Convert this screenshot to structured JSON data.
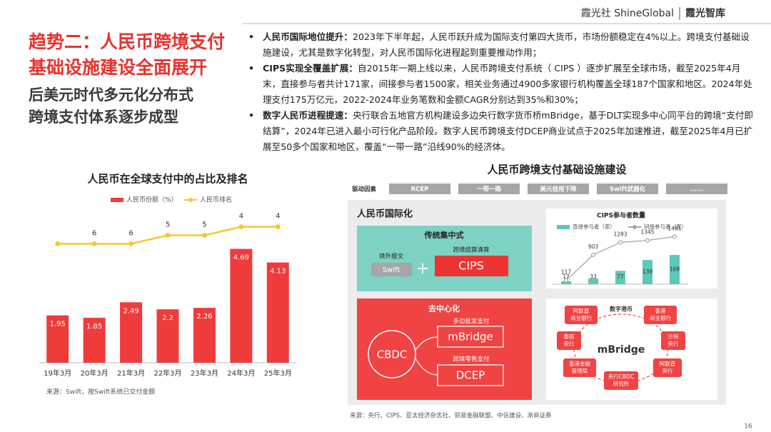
{
  "header": {
    "brand": "霞光社 ShineGlobal",
    "sub": "霞光智库"
  },
  "title": [
    "趋势二：人民币跨境支付",
    "基础设施建设全面展开"
  ],
  "subtitle": [
    "后美元时代多元化分布式",
    "跨境支付体系逐步成型"
  ],
  "bullets": [
    {
      "label": "人民币国际地位提升：",
      "text": "2023年下半年起，人民币跃升成为国际支付第四大货币，市场份额稳定在4%以上。跨境支付基础设施建设，尤其是数字化转型，对人民币国际化进程起到重要推动作用；"
    },
    {
      "label": "CIPS实现全覆盖扩展：",
      "text": "自2015年一期上线以来，人民币跨境支付系统（ CIPS ）逐步扩展至全球市场，截至2025年4月末，直接参与者共计171家，间接参与者1500家，相关业务通过4900多家银行机构覆盖全球187个国家和地区。2024年处理支付175万亿元，2022-2024年业务笔数和金额CAGR分别达到35%和30%；"
    },
    {
      "label": "数字人民币进程提速：",
      "text": "央行联合五地官方机构建设多边央行数字货币桥mBridge，基于DLT实现多中心同平台的跨境“支付即结算”，2024年已进入最小可行化产品阶段。数字人民币跨境支付DCEP商业试点于2025年加速推进，截至2025年4月已扩展至50多个国家和地区，覆盖“一带一路”沿线90%的经济体。"
    }
  ],
  "chart_data": [
    {
      "type": "bar",
      "title": "人民币在全球支付中的占比及排名",
      "categories": [
        "19年3月",
        "20年3月",
        "21年3月",
        "22年3月",
        "23年3月",
        "24年3月",
        "25年3月"
      ],
      "series": [
        {
          "name": "人民币份额（%）",
          "color": "#f03b3b",
          "values": [
            1.95,
            1.85,
            2.49,
            2.2,
            2.26,
            4.69,
            4.13
          ]
        },
        {
          "name": "人民币排名",
          "color": "#f5c733",
          "type": "line",
          "axis": "y2",
          "values": [
            6,
            6,
            6,
            5,
            5,
            4,
            4
          ],
          "value_labels": [
            null,
            "6",
            "6",
            "5",
            "5",
            "4",
            "4"
          ]
        }
      ],
      "ylim": [
        0,
        7
      ],
      "y2lim": [
        20,
        0
      ],
      "source": "来源：Swift，按Swift系统已交付金额"
    },
    {
      "type": "bar",
      "title": "CIPS参与者数量",
      "categories": [
        null,
        null,
        null,
        null,
        null
      ],
      "series": [
        {
          "name": "直接参与者（家）",
          "color": "#5cc8b8",
          "values": [
            17,
            33,
            77,
            139,
            168
          ]
        },
        {
          "name": "间接参与者（家）",
          "color": "#a6a6a6",
          "type": "line",
          "axis": "y2",
          "values": [
            117,
            903,
            1283,
            1345,
            1461
          ]
        }
      ],
      "ylim": [
        0,
        300
      ],
      "y2lim": [
        0,
        1600
      ]
    }
  ],
  "diagram": {
    "title": "人民币跨境支付基础设施建设",
    "drivers_label": "驱动因素",
    "drivers": [
      "RCEP",
      "一带一路",
      "美元信用下降",
      "Swift武器化",
      "......"
    ],
    "panel_title": "人民币国际化",
    "centralized": {
      "title": "传统集中式",
      "msg_label": "境外报文",
      "msg": "Swift",
      "plus": "+",
      "clear_label": "跨境结算清算",
      "clear": "CIPS"
    },
    "decentralized": {
      "title": "去中心化",
      "core": "CBDC",
      "items": [
        {
          "label": "多边批发支付",
          "name": "mBridge"
        },
        {
          "label": "跨境零售支付",
          "name": "DCEP"
        }
      ]
    },
    "mbridge": {
      "center": "mBridge",
      "top": "数字港币",
      "nodes": [
        {
          "lines": [
            "阿联酋",
            "商业银行"
          ]
        },
        {
          "lines": [
            "香港",
            "商业银行"
          ]
        },
        {
          "lines": [
            "泰国",
            "央行"
          ]
        },
        {
          "lines": [
            "沙特",
            "央行"
          ]
        },
        {
          "lines": [
            "香港金融",
            "管理局"
          ]
        },
        {
          "lines": [
            "阿联酋",
            "央行"
          ]
        },
        {
          "lines": [
            "央行CBDC",
            "研究所"
          ]
        }
      ]
    },
    "source": "来源：央行、CIPS、亚太经济杂志社、贸易金融联盟、中信建设、浙商证券"
  },
  "page_number": "16"
}
